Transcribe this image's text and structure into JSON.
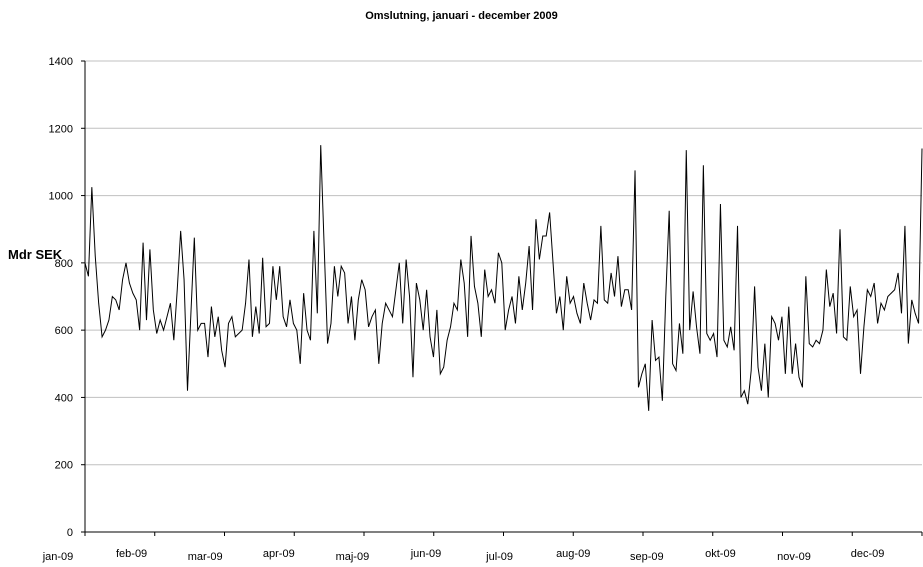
{
  "chart_data": {
    "type": "line",
    "title": "Omslutning, januari - december 2009",
    "ylabel": "Mdr SEK",
    "xlabel": "",
    "ylim": [
      0,
      1400
    ],
    "yticks": [
      0,
      200,
      400,
      600,
      800,
      1000,
      1200,
      1400
    ],
    "yticklabels": [
      "0",
      "200",
      "400",
      "600",
      "800",
      "1000",
      "1200",
      "1400"
    ],
    "xticklabels": [
      "jan-09",
      "feb-09",
      "mar-09",
      "apr-09",
      "maj-09",
      "jun-09",
      "jul-09",
      "aug-09",
      "sep-09",
      "okt-09",
      "nov-09",
      "dec-09"
    ],
    "grid": "horizontal",
    "legend": "none",
    "line_color": "#000000",
    "x_note": "trading days of 2009 (index 0 = first trading day)",
    "series": [
      {
        "values": [
          800,
          760,
          1025,
          820,
          680,
          580,
          600,
          630,
          700,
          690,
          660,
          750,
          800,
          740,
          710,
          690,
          600,
          860,
          630,
          840,
          660,
          590,
          630,
          600,
          640,
          680,
          570,
          720,
          895,
          750,
          420,
          650,
          875,
          600,
          620,
          620,
          520,
          670,
          580,
          640,
          540,
          490,
          620,
          640,
          580,
          590,
          600,
          680,
          810,
          580,
          670,
          590,
          815,
          610,
          620,
          790,
          690,
          790,
          640,
          610,
          690,
          620,
          600,
          500,
          710,
          600,
          570,
          895,
          650,
          1150,
          850,
          560,
          620,
          790,
          700,
          790,
          770,
          620,
          700,
          570,
          690,
          750,
          720,
          610,
          640,
          660,
          500,
          620,
          680,
          660,
          640,
          720,
          800,
          620,
          810,
          700,
          460,
          740,
          690,
          600,
          720,
          580,
          520,
          660,
          470,
          490,
          570,
          610,
          680,
          660,
          810,
          740,
          580,
          880,
          730,
          680,
          580,
          780,
          700,
          720,
          680,
          830,
          800,
          600,
          660,
          700,
          620,
          760,
          660,
          740,
          850,
          660,
          930,
          810,
          880,
          880,
          950,
          800,
          650,
          700,
          600,
          760,
          680,
          700,
          650,
          620,
          740,
          680,
          630,
          690,
          680,
          910,
          690,
          680,
          770,
          700,
          820,
          670,
          720,
          720,
          660,
          1075,
          430,
          470,
          500,
          360,
          630,
          510,
          520,
          390,
          700,
          955,
          500,
          480,
          620,
          530,
          1135,
          600,
          715,
          610,
          530,
          1090,
          590,
          570,
          590,
          520,
          975,
          570,
          550,
          610,
          540,
          910,
          400,
          420,
          380,
          480,
          730,
          490,
          420,
          560,
          400,
          640,
          620,
          570,
          640,
          470,
          670,
          470,
          560,
          460,
          430,
          760,
          560,
          550,
          570,
          560,
          600,
          780,
          670,
          710,
          590,
          900,
          580,
          570,
          730,
          640,
          660,
          470,
          610,
          720,
          700,
          740,
          620,
          680,
          660,
          700,
          710,
          720,
          770,
          650,
          910,
          560,
          690,
          650,
          620,
          1140
        ]
      }
    ]
  }
}
